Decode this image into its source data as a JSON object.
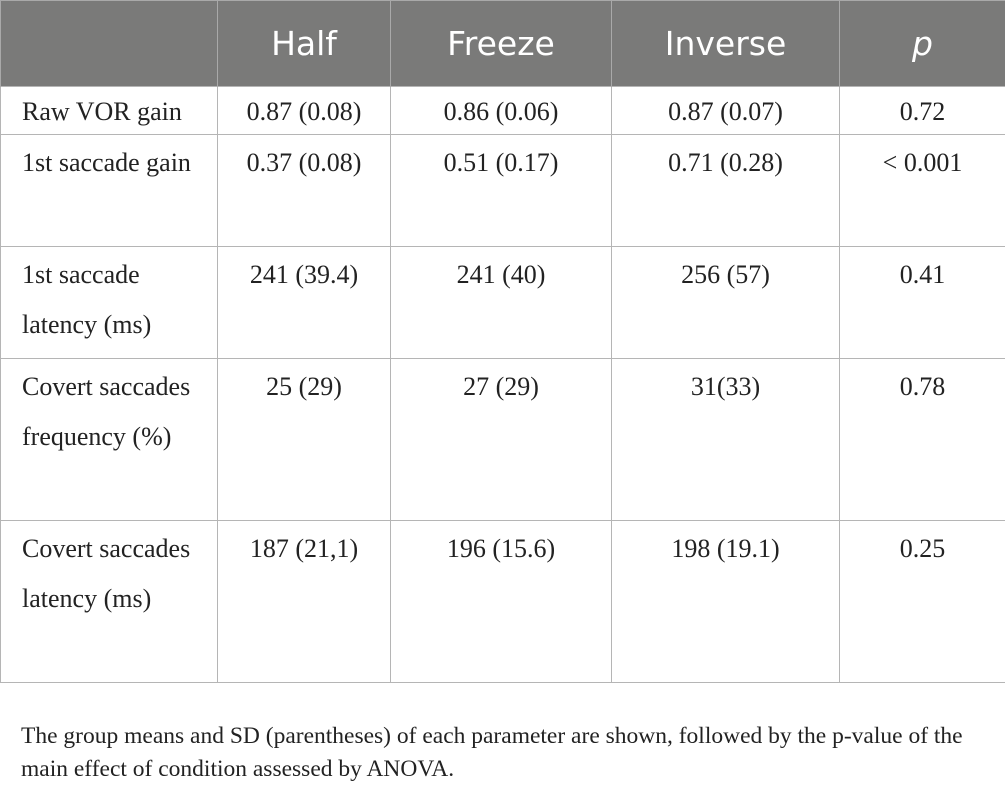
{
  "table": {
    "headers": [
      "",
      "Half",
      "Freeze",
      "Inverse",
      "p"
    ],
    "rows": [
      {
        "label": "Raw VOR gain",
        "values": [
          "0.87 (0.08)",
          "0.86 (0.06)",
          "0.87 (0.07)",
          "0.72"
        ]
      },
      {
        "label": "1st saccade gain",
        "values": [
          "0.37 (0.08)",
          "0.51 (0.17)",
          "0.71 (0.28)",
          "< 0.001"
        ]
      },
      {
        "label": "1st saccade latency (ms)",
        "values": [
          "241 (39.4)",
          "241 (40)",
          "256 (57)",
          "0.41"
        ]
      },
      {
        "label": "Covert saccades frequency (%)",
        "values": [
          "25 (29)",
          "27 (29)",
          "31(33)",
          "0.78"
        ]
      },
      {
        "label": "Covert saccades latency (ms)",
        "values": [
          "187 (21,1)",
          "196 (15.6)",
          "198 (19.1)",
          "0.25"
        ]
      }
    ]
  },
  "footnote": "The group means and SD (parentheses) of each parameter are shown, followed by the p-value of the main effect of condition assessed by ANOVA.",
  "colors": {
    "header_background": "#7a7a79",
    "header_text": "#ffffff",
    "border": "#b5b5b5",
    "body_text": "#222222"
  }
}
